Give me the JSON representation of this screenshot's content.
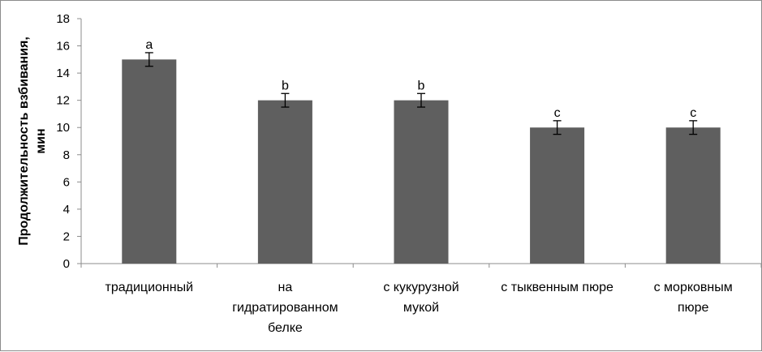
{
  "chart_data": {
    "type": "bar",
    "title": "",
    "xlabel": "",
    "ylabel_lines": [
      "Продолжительность взбивания,",
      "мин"
    ],
    "ylim": [
      0,
      18
    ],
    "yticks": [
      0,
      2,
      4,
      6,
      8,
      10,
      12,
      14,
      16,
      18
    ],
    "categories": [
      [
        "традиционный"
      ],
      [
        "на",
        "гидратированном",
        "белке"
      ],
      [
        "с кукурузной",
        "мукой"
      ],
      [
        "с тыквенным пюре"
      ],
      [
        "с морковным",
        "пюре"
      ]
    ],
    "values": [
      15,
      12,
      12,
      10,
      10
    ],
    "errors": [
      0.5,
      0.5,
      0.5,
      0.5,
      0.5
    ],
    "significance": [
      "a",
      "b",
      "b",
      "c",
      "c"
    ],
    "bar_color": "#5f5f5f",
    "grid": false,
    "legend": "none"
  }
}
